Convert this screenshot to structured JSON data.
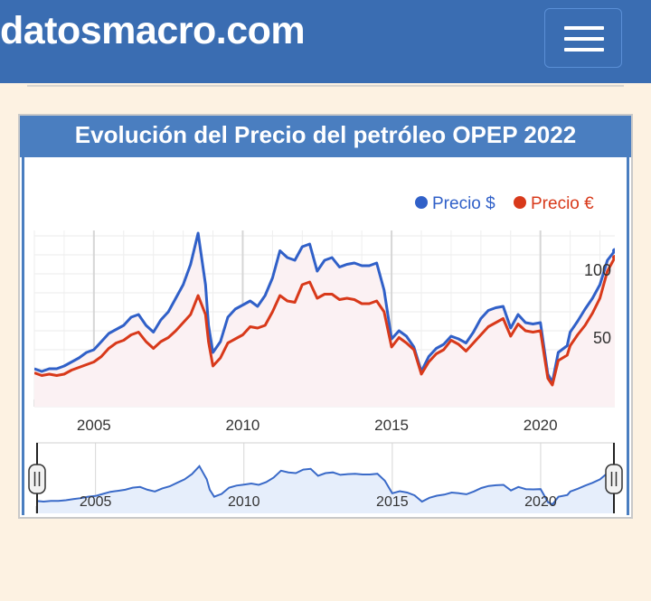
{
  "header": {
    "logo": "datosmacro.com",
    "menu_icon": "hamburger-menu-icon"
  },
  "card": {
    "title": "Evolución del Precio del petróleo OPEP 2022"
  },
  "chart_data": {
    "type": "line",
    "title": "Evolución del Precio del petróleo OPEP 2022",
    "x_start": "2003-01",
    "x_end": "2022-06",
    "xlim": [
      2003.0,
      2022.5
    ],
    "ylim": [
      0,
      130
    ],
    "y_ticks": [
      {
        "value": 100,
        "label": "100"
      },
      {
        "value": 50,
        "label": "50"
      }
    ],
    "x_ticks": [
      {
        "value": 2005,
        "label": "2005"
      },
      {
        "value": 2010,
        "label": "2010"
      },
      {
        "value": 2015,
        "label": "2015"
      },
      {
        "value": 2020,
        "label": "2020"
      }
    ],
    "grid": true,
    "legend_position": "top-right",
    "series": [
      {
        "name": "Precio $",
        "color": "#3060c8",
        "points": [
          [
            2003.0,
            28
          ],
          [
            2003.25,
            26
          ],
          [
            2003.5,
            28
          ],
          [
            2003.75,
            28
          ],
          [
            2004.0,
            30
          ],
          [
            2004.25,
            33
          ],
          [
            2004.5,
            36
          ],
          [
            2004.75,
            40
          ],
          [
            2005.0,
            42
          ],
          [
            2005.25,
            48
          ],
          [
            2005.5,
            54
          ],
          [
            2005.75,
            57
          ],
          [
            2006.0,
            60
          ],
          [
            2006.25,
            66
          ],
          [
            2006.5,
            68
          ],
          [
            2006.75,
            60
          ],
          [
            2007.0,
            55
          ],
          [
            2007.25,
            64
          ],
          [
            2007.5,
            70
          ],
          [
            2007.75,
            80
          ],
          [
            2008.0,
            90
          ],
          [
            2008.25,
            105
          ],
          [
            2008.5,
            128
          ],
          [
            2008.75,
            90
          ],
          [
            2008.85,
            60
          ],
          [
            2009.0,
            40
          ],
          [
            2009.25,
            48
          ],
          [
            2009.5,
            66
          ],
          [
            2009.75,
            72
          ],
          [
            2010.0,
            75
          ],
          [
            2010.25,
            78
          ],
          [
            2010.5,
            74
          ],
          [
            2010.75,
            82
          ],
          [
            2011.0,
            95
          ],
          [
            2011.25,
            115
          ],
          [
            2011.5,
            110
          ],
          [
            2011.75,
            108
          ],
          [
            2012.0,
            118
          ],
          [
            2012.25,
            120
          ],
          [
            2012.5,
            100
          ],
          [
            2012.75,
            108
          ],
          [
            2013.0,
            110
          ],
          [
            2013.25,
            103
          ],
          [
            2013.5,
            105
          ],
          [
            2013.75,
            106
          ],
          [
            2014.0,
            104
          ],
          [
            2014.25,
            104
          ],
          [
            2014.5,
            106
          ],
          [
            2014.75,
            86
          ],
          [
            2015.0,
            50
          ],
          [
            2015.25,
            56
          ],
          [
            2015.5,
            52
          ],
          [
            2015.75,
            44
          ],
          [
            2016.0,
            26
          ],
          [
            2016.25,
            37
          ],
          [
            2016.5,
            43
          ],
          [
            2016.75,
            46
          ],
          [
            2017.0,
            52
          ],
          [
            2017.25,
            50
          ],
          [
            2017.5,
            47
          ],
          [
            2017.75,
            55
          ],
          [
            2018.0,
            65
          ],
          [
            2018.25,
            71
          ],
          [
            2018.5,
            73
          ],
          [
            2018.75,
            74
          ],
          [
            2019.0,
            58
          ],
          [
            2019.25,
            68
          ],
          [
            2019.5,
            62
          ],
          [
            2019.75,
            61
          ],
          [
            2020.0,
            62
          ],
          [
            2020.25,
            24
          ],
          [
            2020.4,
            18
          ],
          [
            2020.6,
            40
          ],
          [
            2020.9,
            45
          ],
          [
            2021.0,
            55
          ],
          [
            2021.25,
            63
          ],
          [
            2021.5,
            72
          ],
          [
            2021.75,
            80
          ],
          [
            2022.0,
            90
          ],
          [
            2022.25,
            108
          ],
          [
            2022.5,
            115
          ]
        ]
      },
      {
        "name": "Precio €",
        "color": "#d8391a",
        "points": [
          [
            2003.0,
            25
          ],
          [
            2003.25,
            23
          ],
          [
            2003.5,
            24
          ],
          [
            2003.75,
            23
          ],
          [
            2004.0,
            24
          ],
          [
            2004.25,
            27
          ],
          [
            2004.5,
            29
          ],
          [
            2004.75,
            31
          ],
          [
            2005.0,
            33
          ],
          [
            2005.25,
            37
          ],
          [
            2005.5,
            43
          ],
          [
            2005.75,
            47
          ],
          [
            2006.0,
            49
          ],
          [
            2006.25,
            53
          ],
          [
            2006.5,
            55
          ],
          [
            2006.75,
            48
          ],
          [
            2007.0,
            43
          ],
          [
            2007.25,
            48
          ],
          [
            2007.5,
            51
          ],
          [
            2007.75,
            56
          ],
          [
            2008.0,
            62
          ],
          [
            2008.25,
            68
          ],
          [
            2008.5,
            82
          ],
          [
            2008.75,
            68
          ],
          [
            2008.85,
            48
          ],
          [
            2009.0,
            30
          ],
          [
            2009.25,
            36
          ],
          [
            2009.5,
            47
          ],
          [
            2009.75,
            50
          ],
          [
            2010.0,
            53
          ],
          [
            2010.25,
            59
          ],
          [
            2010.5,
            58
          ],
          [
            2010.75,
            60
          ],
          [
            2011.0,
            70
          ],
          [
            2011.25,
            82
          ],
          [
            2011.5,
            78
          ],
          [
            2011.75,
            77
          ],
          [
            2012.0,
            90
          ],
          [
            2012.25,
            92
          ],
          [
            2012.5,
            80
          ],
          [
            2012.75,
            83
          ],
          [
            2013.0,
            83
          ],
          [
            2013.25,
            79
          ],
          [
            2013.5,
            80
          ],
          [
            2013.75,
            79
          ],
          [
            2014.0,
            76
          ],
          [
            2014.25,
            76
          ],
          [
            2014.5,
            78
          ],
          [
            2014.75,
            70
          ],
          [
            2015.0,
            44
          ],
          [
            2015.25,
            51
          ],
          [
            2015.5,
            47
          ],
          [
            2015.75,
            42
          ],
          [
            2016.0,
            24
          ],
          [
            2016.25,
            33
          ],
          [
            2016.5,
            39
          ],
          [
            2016.75,
            42
          ],
          [
            2017.0,
            49
          ],
          [
            2017.25,
            46
          ],
          [
            2017.5,
            41
          ],
          [
            2017.75,
            47
          ],
          [
            2018.0,
            53
          ],
          [
            2018.25,
            59
          ],
          [
            2018.5,
            62
          ],
          [
            2018.75,
            65
          ],
          [
            2019.0,
            52
          ],
          [
            2019.25,
            61
          ],
          [
            2019.5,
            56
          ],
          [
            2019.75,
            55
          ],
          [
            2020.0,
            56
          ],
          [
            2020.25,
            21
          ],
          [
            2020.4,
            16
          ],
          [
            2020.6,
            34
          ],
          [
            2020.9,
            38
          ],
          [
            2021.0,
            45
          ],
          [
            2021.25,
            53
          ],
          [
            2021.5,
            60
          ],
          [
            2021.75,
            69
          ],
          [
            2022.0,
            80
          ],
          [
            2022.25,
            100
          ],
          [
            2022.5,
            110
          ]
        ]
      }
    ],
    "navigator": {
      "x_ticks": [
        {
          "value": 2005,
          "label": "2005"
        },
        {
          "value": 2010,
          "label": "2010"
        },
        {
          "value": 2015,
          "label": "2015"
        },
        {
          "value": 2020,
          "label": "2020"
        }
      ],
      "handle_icon": "range-handle-icon"
    }
  }
}
